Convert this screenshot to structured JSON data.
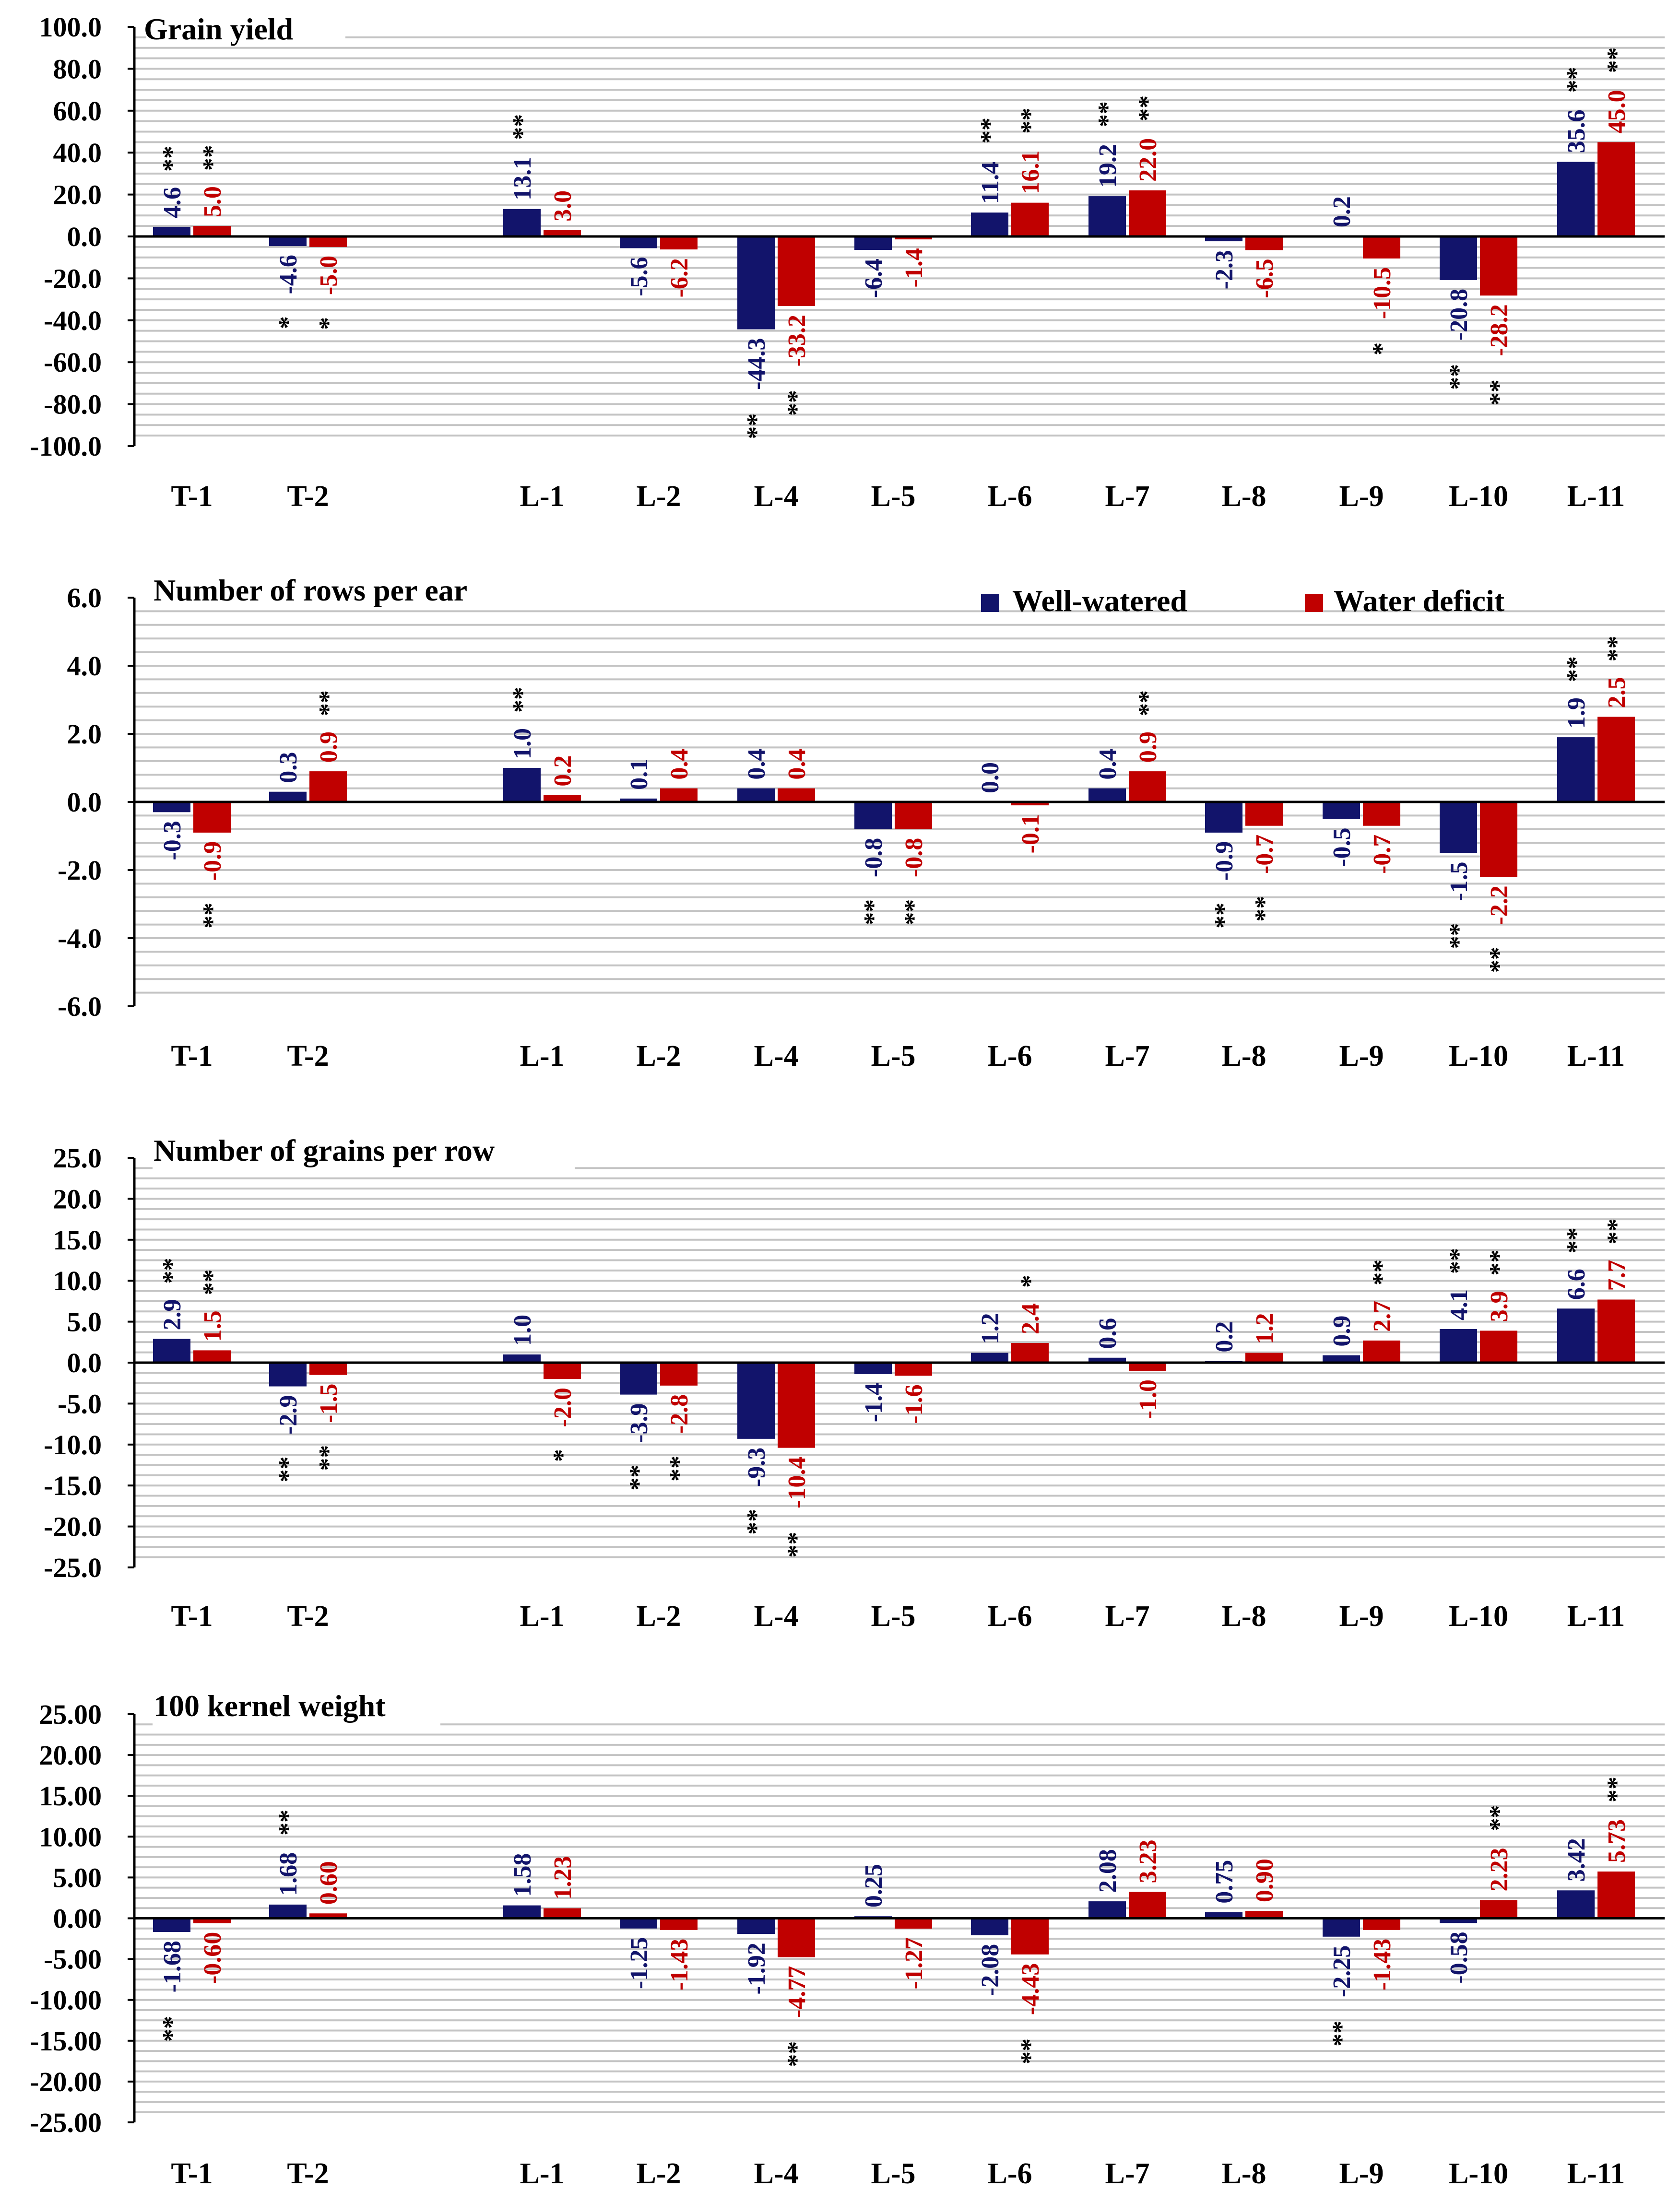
{
  "legend": {
    "well_label": "Well-watered",
    "deficit_label": "Water deficit"
  },
  "colors": {
    "well": "#12146b",
    "deficit": "#c00000",
    "grid": "#c4c4c4",
    "axis": "#000000"
  },
  "chart_data": [
    {
      "type": "bar",
      "title": "Grain yield",
      "categories": [
        "T-1",
        "T-2",
        "L-1",
        "L-2",
        "L-4",
        "L-5",
        "L-6",
        "L-7",
        "L-8",
        "L-9",
        "L-10",
        "L-11"
      ],
      "ylim": [
        -100,
        100
      ],
      "yticks": [
        "100.0",
        "80.0",
        "60.0",
        "40.0",
        "20.0",
        "0.0",
        "-20.0",
        "-40.0",
        "-60.0",
        "-80.0",
        "-100.0"
      ],
      "minor_grid_step": 5,
      "series": [
        {
          "name": "Well-watered",
          "values": [
            4.6,
            -4.6,
            13.1,
            -5.6,
            -44.3,
            -6.4,
            11.4,
            19.2,
            -2.3,
            0.2,
            -20.8,
            35.6
          ],
          "labels": [
            "4.6",
            "-4.6",
            "13.1",
            "-5.6",
            "-44.3",
            "-6.4",
            "11.4",
            "19.2",
            "-2.3",
            "0.2",
            "-20.8",
            "35.6"
          ],
          "significance": [
            "**",
            "*",
            "**",
            "",
            "**",
            "",
            "**",
            "**",
            "",
            "",
            "**",
            "**"
          ]
        },
        {
          "name": "Water deficit",
          "values": [
            5.0,
            -5.0,
            3.0,
            -6.2,
            -33.2,
            -1.4,
            16.1,
            22.0,
            -6.5,
            -10.5,
            -28.2,
            45.0
          ],
          "labels": [
            "5.0",
            "-5.0",
            "3.0",
            "-6.2",
            "-33.2",
            "-1.4",
            "16.1",
            "22.0",
            "-6.5",
            "-10.5",
            "-28.2",
            "45.0"
          ],
          "significance": [
            "**",
            "*",
            "",
            "",
            "**",
            "",
            "**",
            "**",
            "",
            "*",
            "**",
            "**"
          ]
        }
      ]
    },
    {
      "type": "bar",
      "title": "Number of rows per ear",
      "categories": [
        "T-1",
        "T-2",
        "L-1",
        "L-2",
        "L-4",
        "L-5",
        "L-6",
        "L-7",
        "L-8",
        "L-9",
        "L-10",
        "L-11"
      ],
      "ylim": [
        -6,
        6
      ],
      "yticks": [
        "6.0",
        "4.0",
        "2.0",
        "0.0",
        "-2.0",
        "-4.0",
        "-6.0"
      ],
      "minor_grid_step": 0.4,
      "series": [
        {
          "name": "Well-watered",
          "values": [
            -0.3,
            0.3,
            1.0,
            0.1,
            0.4,
            -0.8,
            0.0,
            0.4,
            -0.9,
            -0.5,
            -1.5,
            1.9
          ],
          "labels": [
            "-0.3",
            "0.3",
            "1.0",
            "0.1",
            "0.4",
            "-0.8",
            "0.0",
            "0.4",
            "-0.9",
            "-0.5",
            "-1.5",
            "1.9"
          ],
          "significance": [
            "",
            "",
            "**",
            "",
            "",
            "**",
            "",
            "",
            "**",
            "",
            "**",
            "**"
          ]
        },
        {
          "name": "Water deficit",
          "values": [
            -0.9,
            0.9,
            0.2,
            0.4,
            0.4,
            -0.8,
            -0.1,
            0.9,
            -0.7,
            -0.7,
            -2.2,
            2.5
          ],
          "labels": [
            "-0.9",
            "0.9",
            "0.2",
            "0.4",
            "0.4",
            "-0.8",
            "-0.1",
            "0.9",
            "-0.7",
            "-0.7",
            "-2.2",
            "2.5"
          ],
          "significance": [
            "**",
            "**",
            "",
            "",
            "",
            "**",
            "",
            "**",
            "**",
            "",
            "**",
            "**"
          ]
        }
      ]
    },
    {
      "type": "bar",
      "title": "Number of grains per row",
      "categories": [
        "T-1",
        "T-2",
        "L-1",
        "L-2",
        "L-4",
        "L-5",
        "L-6",
        "L-7",
        "L-8",
        "L-9",
        "L-10",
        "L-11"
      ],
      "ylim": [
        -25,
        25
      ],
      "yticks": [
        "25.0",
        "20.0",
        "15.0",
        "10.0",
        "5.0",
        "0.0",
        "-5.0",
        "-10.0",
        "-15.0",
        "-20.0",
        "-25.0"
      ],
      "minor_grid_step": 1.25,
      "series": [
        {
          "name": "Well-watered",
          "values": [
            2.9,
            -2.9,
            1.0,
            -3.9,
            -9.3,
            -1.4,
            1.2,
            0.6,
            0.2,
            0.9,
            4.1,
            6.6
          ],
          "labels": [
            "2.9",
            "-2.9",
            "1.0",
            "-3.9",
            "-9.3",
            "-1.4",
            "1.2",
            "0.6",
            "0.2",
            "0.9",
            "4.1",
            "6.6"
          ],
          "significance": [
            "**",
            "**",
            "",
            "**",
            "**",
            "",
            "",
            "",
            "",
            "",
            "**",
            "**"
          ]
        },
        {
          "name": "Water deficit",
          "values": [
            1.5,
            -1.5,
            -2.0,
            -2.8,
            -10.4,
            -1.6,
            2.4,
            -1.0,
            1.2,
            2.7,
            3.9,
            7.7
          ],
          "labels": [
            "1.5",
            "-1.5",
            "-2.0",
            "-2.8",
            "-10.4",
            "-1.6",
            "2.4",
            "-1.0",
            "1.2",
            "2.7",
            "3.9",
            "7.7"
          ],
          "significance": [
            "**",
            "**",
            "*",
            "**",
            "**",
            "",
            "*",
            "",
            "",
            "**",
            "**",
            "**"
          ]
        }
      ]
    },
    {
      "type": "bar",
      "title": "100 kernel weight",
      "categories": [
        "T-1",
        "T-2",
        "L-1",
        "L-2",
        "L-4",
        "L-5",
        "L-6",
        "L-7",
        "L-8",
        "L-9",
        "L-10",
        "L-11"
      ],
      "ylim": [
        -25,
        25
      ],
      "yticks": [
        "25.00",
        "20.00",
        "15.00",
        "10.00",
        "5.00",
        "0.00",
        "-5.00",
        "-10.00",
        "-15.00",
        "-20.00",
        "-25.00"
      ],
      "minor_grid_step": 1.25,
      "series": [
        {
          "name": "Well-watered",
          "values": [
            -1.68,
            1.68,
            1.58,
            -1.25,
            -1.92,
            0.25,
            -2.08,
            2.08,
            0.75,
            -2.25,
            -0.58,
            3.42
          ],
          "labels": [
            "-1.68",
            "1.68",
            "1.58",
            "-1.25",
            "-1.92",
            "0.25",
            "-2.08",
            "2.08",
            "0.75",
            "-2.25",
            "-0.58",
            "3.42"
          ],
          "significance": [
            "**",
            "**",
            "",
            "",
            "",
            "",
            "",
            "",
            "",
            "**",
            "",
            ""
          ]
        },
        {
          "name": "Water deficit",
          "values": [
            -0.6,
            0.6,
            1.23,
            -1.43,
            -4.77,
            -1.27,
            -4.43,
            3.23,
            0.9,
            -1.43,
            2.23,
            5.73
          ],
          "labels": [
            "-0.60",
            "0.60",
            "1.23",
            "-1.43",
            "-4.77",
            "-1.27",
            "-4.43",
            "3.23",
            "0.90",
            "-1.43",
            "2.23",
            "5.73"
          ],
          "significance": [
            "",
            "",
            "",
            "",
            "**",
            "",
            "**",
            "",
            "",
            "",
            "**",
            "**"
          ]
        }
      ]
    }
  ]
}
